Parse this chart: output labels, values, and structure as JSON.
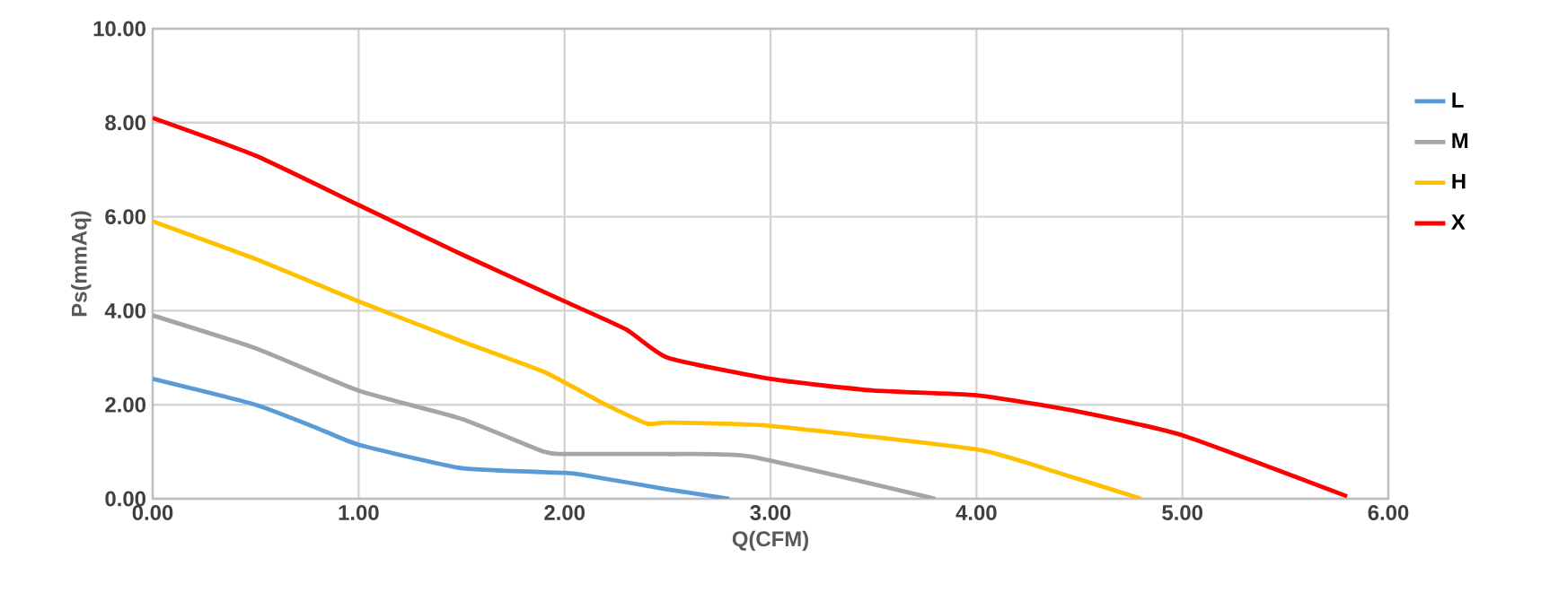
{
  "chart_data": {
    "type": "line",
    "xlabel": "Q(CFM)",
    "ylabel": "Ps(mmAq)",
    "xlim": [
      0,
      6
    ],
    "xticks": [
      {
        "value": 0,
        "label": "0.00"
      },
      {
        "value": 1,
        "label": "1.00"
      },
      {
        "value": 2,
        "label": "2.00"
      },
      {
        "value": 3,
        "label": "3.00"
      },
      {
        "value": 4,
        "label": "4.00"
      },
      {
        "value": 5,
        "label": "5.00"
      },
      {
        "value": 6,
        "label": "6.00"
      }
    ],
    "ylim": [
      0,
      10
    ],
    "yticks": [
      {
        "value": 0,
        "label": "0.00"
      },
      {
        "value": 2,
        "label": "2.00"
      },
      {
        "value": 4,
        "label": "4.00"
      },
      {
        "value": 6,
        "label": "6.00"
      },
      {
        "value": 8,
        "label": "8.00"
      },
      {
        "value": 10,
        "label": "10.00"
      }
    ],
    "grid": true,
    "legend": "right",
    "marker": "none",
    "line_style": "solid",
    "series": [
      {
        "name": "L",
        "color": "#5b9bd5",
        "x": [
          0,
          0.5,
          0.8,
          1.0,
          1.5,
          2.0,
          2.1,
          2.5,
          2.8
        ],
        "values": [
          2.55,
          2.0,
          1.5,
          1.15,
          0.65,
          0.55,
          0.5,
          0.2,
          0.0
        ]
      },
      {
        "name": "M",
        "color": "#a5a5a5",
        "x": [
          0,
          0.5,
          1.0,
          1.5,
          1.9,
          2.0,
          2.5,
          2.9,
          3.8
        ],
        "values": [
          3.9,
          3.2,
          2.3,
          1.7,
          1.0,
          0.95,
          0.95,
          0.9,
          0.0
        ]
      },
      {
        "name": "H",
        "color": "#ffc000",
        "x": [
          0,
          0.5,
          1.0,
          1.5,
          1.9,
          2.2,
          2.4,
          2.5,
          3.0,
          4.0,
          4.4,
          4.8
        ],
        "values": [
          5.9,
          5.1,
          4.2,
          3.35,
          2.7,
          2.0,
          1.6,
          1.62,
          1.55,
          1.05,
          0.55,
          0.0
        ]
      },
      {
        "name": "X",
        "color": "#ff0000",
        "x": [
          0,
          0.5,
          1.0,
          1.5,
          2.0,
          2.3,
          2.5,
          3.0,
          3.5,
          4.0,
          4.5,
          5.0,
          5.8
        ],
        "values": [
          8.1,
          7.3,
          6.25,
          5.2,
          4.2,
          3.6,
          3.0,
          2.55,
          2.3,
          2.2,
          1.85,
          1.35,
          0.05
        ]
      }
    ]
  }
}
